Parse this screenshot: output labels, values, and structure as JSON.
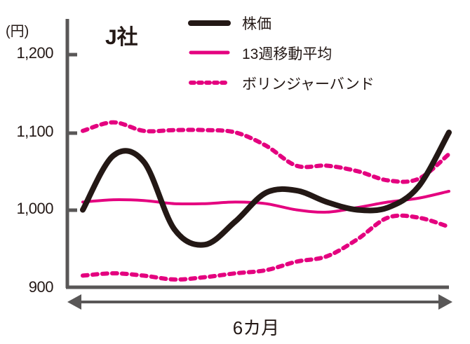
{
  "chart_data": {
    "type": "line",
    "title": "J社",
    "xlabel": "6カ月",
    "ylabel": "(円)",
    "ylim": [
      900,
      1200
    ],
    "yticks": [
      900,
      1000,
      1100,
      1200
    ],
    "ytick_labels": [
      "900",
      "1,000",
      "1,100",
      "1,200"
    ],
    "grid": false,
    "legend_position": "top-right",
    "x": [
      0,
      1,
      2,
      3,
      4,
      5,
      6,
      7,
      8,
      9,
      10,
      11,
      12
    ],
    "series": [
      {
        "name": "株価",
        "style": "solid-thick",
        "color": "#231815",
        "values": [
          1000,
          1070,
          1062,
          975,
          955,
          985,
          1022,
          1025,
          1010,
          1000,
          1003,
          1030,
          1100
        ]
      },
      {
        "name": "13週移動平均",
        "style": "solid",
        "color": "#e4007f",
        "values": [
          1010,
          1013,
          1012,
          1008,
          1008,
          1010,
          1008,
          1000,
          997,
          1003,
          1010,
          1015,
          1024
        ]
      },
      {
        "name": "ボリンジャーバンド",
        "style": "dotted",
        "color": "#e4007f",
        "band": "upper",
        "values": [
          1102,
          1113,
          1102,
          1103,
          1103,
          1100,
          1083,
          1057,
          1057,
          1050,
          1038,
          1040,
          1072
        ]
      },
      {
        "name": "ボリンジャーバンド",
        "style": "dotted",
        "color": "#e4007f",
        "band": "lower",
        "values": [
          915,
          918,
          915,
          910,
          913,
          918,
          922,
          933,
          940,
          962,
          990,
          990,
          978
        ]
      }
    ]
  },
  "header": {
    "unit_label": "(円)",
    "title": "J社"
  },
  "legend": {
    "items": [
      {
        "label": "株価",
        "style": "solid-thick",
        "color": "#231815"
      },
      {
        "label": "13週移動平均",
        "style": "solid",
        "color": "#e4007f"
      },
      {
        "label": "ボリンジャーバンド",
        "style": "dotted",
        "color": "#e4007f"
      }
    ]
  },
  "axis": {
    "y_labels": [
      "1,200",
      "1,100",
      "1,000",
      "900"
    ],
    "x_label": "6カ月"
  },
  "colors": {
    "axis": "#595757",
    "price": "#231815",
    "accent": "#e4007f"
  }
}
